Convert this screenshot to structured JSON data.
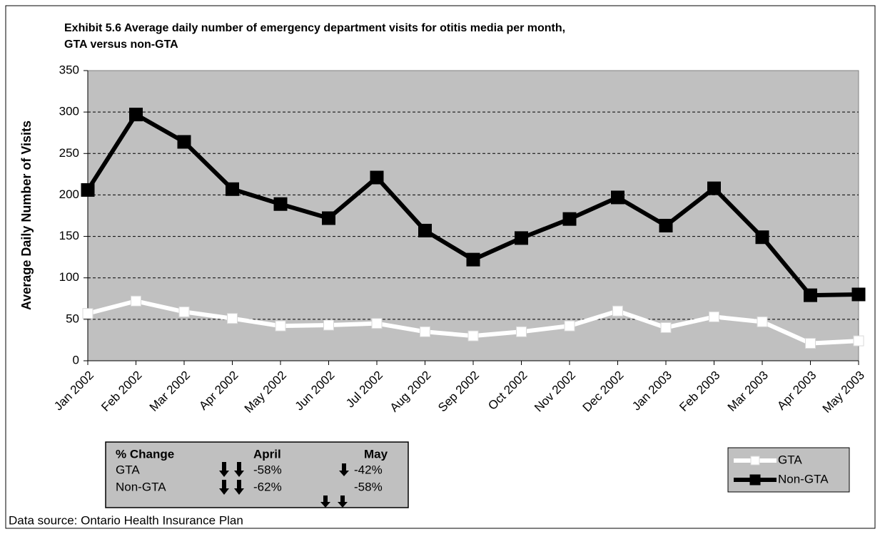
{
  "chart_data": {
    "type": "line",
    "title": [
      "Exhibit 5.6 Average daily number of emergency department visits for otitis media per month,",
      "GTA versus non-GTA"
    ],
    "y_label": "Average Daily Number of Visits",
    "categories": [
      "Jan 2002",
      "Feb 2002",
      "Mar 2002",
      "Apr 2002",
      "May 2002",
      "Jun 2002",
      "Jul 2002",
      "Aug 2002",
      "Sep 2002",
      "Oct 2002",
      "Nov 2002",
      "Dec 2002",
      "Jan 2003",
      "Feb 2003",
      "Mar 2003",
      "Apr 2003",
      "May 2003"
    ],
    "series": [
      {
        "name": "GTA",
        "color": "#ffffff",
        "values": [
          57,
          72,
          59,
          51,
          42,
          43,
          45,
          35,
          30,
          35,
          42,
          60,
          40,
          53,
          47,
          21,
          24
        ]
      },
      {
        "name": "Non-GTA",
        "color": "#000000",
        "values": [
          206,
          297,
          264,
          207,
          189,
          172,
          221,
          157,
          122,
          148,
          171,
          197,
          163,
          208,
          149,
          79,
          80
        ]
      }
    ],
    "ylim": [
      0,
      350
    ],
    "yticks": [
      0,
      50,
      100,
      150,
      200,
      250,
      300,
      350
    ],
    "grid": true
  },
  "change_table": {
    "header": [
      "% Change",
      "April",
      "May"
    ],
    "rows": [
      [
        "GTA",
        "-58%",
        "-42%"
      ],
      [
        "Non-GTA",
        "-62%",
        "-58%"
      ]
    ]
  },
  "source": "Data source: Ontario Health Insurance Plan"
}
